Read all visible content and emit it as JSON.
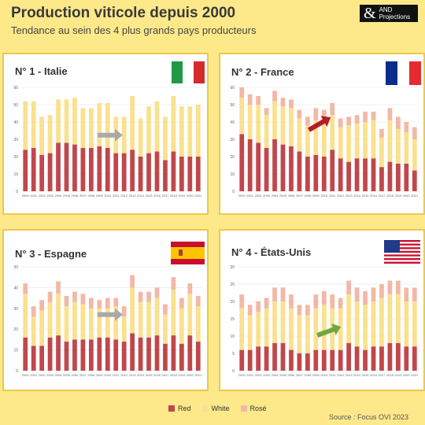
{
  "header": {
    "title": "Production viticole depuis 2000",
    "subtitle": "Tendance au sein des 4 plus grands pays producteurs",
    "logo_symbol": "&",
    "logo_line1": "AND",
    "logo_line2": "Projections"
  },
  "colors": {
    "red": "#c0474b",
    "white": "#fae18f",
    "rose": "#f2b8a7",
    "arrow_grey": "#a9a9a9",
    "arrow_red": "#b11f24",
    "arrow_green": "#6ea83f"
  },
  "legend": {
    "red": "Red",
    "white": "White",
    "rose": "Rosé"
  },
  "source": "Source : Focus OVI 2023",
  "chart_data": [
    {
      "title": "N° 1 - Italie",
      "type": "bar",
      "flag": "italy-flag",
      "arrow": "flat",
      "ylim": [
        0,
        60
      ],
      "yticks": [
        0,
        10,
        20,
        30,
        40,
        50,
        60
      ],
      "categories": [
        "2000",
        "2001",
        "2002",
        "2003",
        "2004",
        "2005",
        "2006",
        "2007",
        "2008",
        "2009",
        "2010",
        "2011",
        "2012",
        "2013",
        "2014",
        "2015",
        "2016",
        "2017",
        "2018",
        "2019",
        "2020",
        "2021"
      ],
      "series": [
        {
          "name": "Red",
          "values": [
            24,
            25,
            21,
            22,
            28,
            28,
            27,
            25,
            25,
            26,
            25,
            22,
            22,
            24,
            20,
            22,
            23,
            18,
            23,
            20,
            20,
            20
          ]
        },
        {
          "name": "White",
          "values": [
            28,
            27,
            22,
            22,
            25,
            25,
            27,
            23,
            23,
            25,
            26,
            21,
            21,
            31,
            22,
            27,
            29,
            25,
            32,
            29,
            29,
            30
          ]
        },
        {
          "name": "Rosé",
          "values": [
            0,
            0,
            0,
            0,
            0,
            0,
            0,
            0,
            0,
            0,
            0,
            0,
            0,
            0,
            0,
            0,
            0,
            0,
            0,
            0,
            0,
            0
          ]
        }
      ]
    },
    {
      "title": "N° 2 - France",
      "type": "bar",
      "flag": "france-flag",
      "arrow": "down",
      "ylim": [
        0,
        60
      ],
      "yticks": [
        0,
        10,
        20,
        30,
        40,
        50,
        60
      ],
      "categories": [
        "2000",
        "2001",
        "2002",
        "2003",
        "2004",
        "2005",
        "2006",
        "2007",
        "2008",
        "2009",
        "2010",
        "2011",
        "2012",
        "2013",
        "2014",
        "2015",
        "2016",
        "2017",
        "2018",
        "2019",
        "2020",
        "2021"
      ],
      "series": [
        {
          "name": "Red",
          "values": [
            33,
            30,
            28,
            25,
            30,
            27,
            26,
            23,
            20,
            21,
            20,
            24,
            19,
            17,
            19,
            19,
            19,
            14,
            17,
            16,
            16,
            12
          ]
        },
        {
          "name": "White",
          "values": [
            21,
            20,
            22,
            19,
            22,
            22,
            22,
            19,
            18,
            20,
            20,
            20,
            18,
            21,
            20,
            21,
            22,
            17,
            24,
            20,
            18,
            18
          ]
        },
        {
          "name": "Rosé",
          "values": [
            6,
            6,
            5,
            4,
            6,
            5,
            5,
            5,
            5,
            7,
            7,
            7,
            5,
            5,
            5,
            6,
            5,
            5,
            7,
            7,
            6,
            7
          ]
        }
      ]
    },
    {
      "title": "N° 3 - Espagne",
      "type": "bar",
      "flag": "spain-flag",
      "arrow": "flat",
      "ylim": [
        0,
        50
      ],
      "yticks": [
        0,
        10,
        20,
        30,
        40,
        50
      ],
      "categories": [
        "2000",
        "2001",
        "2002",
        "2003",
        "2004",
        "2005",
        "2006",
        "2007",
        "2008",
        "2009",
        "2010",
        "2011",
        "2012",
        "2013",
        "2014",
        "2015",
        "2016",
        "2017",
        "2018",
        "2019",
        "2020",
        "2021"
      ],
      "series": [
        {
          "name": "Red",
          "values": [
            16,
            12,
            12,
            16,
            17,
            14,
            15,
            15,
            15,
            16,
            16,
            15,
            14,
            18,
            16,
            16,
            17,
            13,
            17,
            13,
            17,
            14
          ]
        },
        {
          "name": "White",
          "values": [
            21,
            14,
            17,
            17,
            20,
            17,
            18,
            17,
            15,
            14,
            14,
            16,
            12,
            22,
            17,
            17,
            18,
            14,
            22,
            17,
            20,
            17
          ]
        },
        {
          "name": "Rosé",
          "values": [
            5,
            5,
            5,
            5,
            6,
            5,
            5,
            5,
            5,
            4,
            5,
            4,
            5,
            6,
            5,
            5,
            5,
            5,
            6,
            5,
            5,
            5
          ]
        }
      ]
    },
    {
      "title": "N° 4 - États-Unis",
      "type": "bar",
      "flag": "usa-flag",
      "arrow": "up",
      "ylim": [
        0,
        30
      ],
      "yticks": [
        0,
        5,
        10,
        15,
        20,
        25,
        30
      ],
      "categories": [
        "2000",
        "2001",
        "2002",
        "2003",
        "2004",
        "2005",
        "2006",
        "2007",
        "2008",
        "2009",
        "2010",
        "2011",
        "2012",
        "2013",
        "2014",
        "2015",
        "2016",
        "2017",
        "2018",
        "2019",
        "2020",
        "2021"
      ],
      "series": [
        {
          "name": "Red",
          "values": [
            6,
            6,
            7,
            7,
            8,
            8,
            6,
            5,
            5,
            6,
            6,
            6,
            6,
            8,
            7,
            6,
            7,
            7,
            8,
            8,
            7,
            7
          ]
        },
        {
          "name": "White",
          "values": [
            12,
            10,
            10,
            11,
            12,
            12,
            12,
            11,
            11,
            12,
            13,
            12,
            12,
            14,
            13,
            13,
            13,
            14,
            14,
            14,
            13,
            13
          ]
        },
        {
          "name": "Rosé",
          "values": [
            4,
            3,
            3,
            3,
            4,
            4,
            4,
            3,
            3,
            4,
            4,
            4,
            3,
            4,
            4,
            4,
            4,
            4,
            4,
            4,
            4,
            4
          ]
        }
      ]
    }
  ]
}
